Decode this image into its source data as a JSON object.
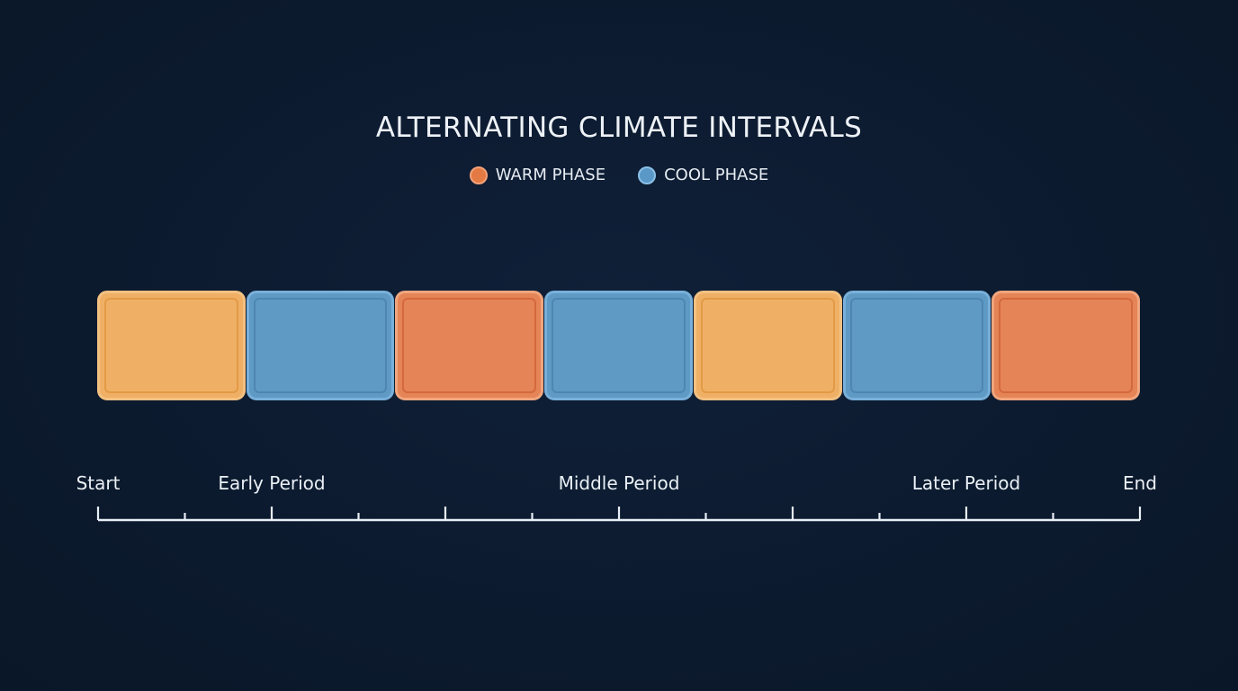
{
  "title": "ALTERNATING CLIMATE INTERVALS",
  "legend": [
    {
      "label": "WARM PHASE",
      "color": "#e47a43",
      "ring": "#f2a27a",
      "icon": "warm-phase-dot"
    },
    {
      "label": "COOL PHASE",
      "color": "#5a98c8",
      "ring": "#8cc0e6",
      "icon": "cool-phase-dot"
    }
  ],
  "phases": [
    {
      "phase": "warm",
      "fill": "#efb066",
      "border": "#f3c182",
      "inner_border": "#e39a45"
    },
    {
      "phase": "cool",
      "fill": "#5f9ac4",
      "border": "#78b0da",
      "inner_border": "#4d86b3"
    },
    {
      "phase": "warm",
      "fill": "#e58456",
      "border": "#f0a67e",
      "inner_border": "#d3693c"
    },
    {
      "phase": "cool",
      "fill": "#5f9ac4",
      "border": "#78b0da",
      "inner_border": "#4d86b3"
    },
    {
      "phase": "warm",
      "fill": "#efb066",
      "border": "#f3c182",
      "inner_border": "#e39a45"
    },
    {
      "phase": "cool",
      "fill": "#5f9ac4",
      "border": "#78b0da",
      "inner_border": "#4d86b3"
    },
    {
      "phase": "warm",
      "fill": "#e58456",
      "border": "#f0a67e",
      "inner_border": "#d3693c"
    }
  ],
  "axis": {
    "labels": [
      {
        "text": "Start",
        "tick": 0
      },
      {
        "text": "Early Period",
        "tick": 2
      },
      {
        "text": "Middle Period",
        "tick": 6
      },
      {
        "text": "Later Period",
        "tick": 10
      },
      {
        "text": "End",
        "tick": 12
      }
    ],
    "tick_count": 12,
    "major_ticks": [
      0,
      2,
      4,
      6,
      8,
      10,
      12
    ],
    "color": "#e8eef5"
  }
}
